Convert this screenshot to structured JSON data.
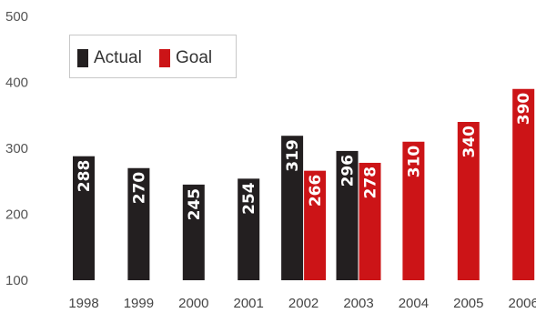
{
  "chart_data": {
    "type": "bar",
    "categories": [
      "1998",
      "1999",
      "2000",
      "2001",
      "2002",
      "2003",
      "2004",
      "2005",
      "2006"
    ],
    "series": [
      {
        "name": "Actual",
        "color": "#231f20",
        "values": [
          288,
          270,
          245,
          254,
          319,
          296,
          null,
          null,
          null
        ]
      },
      {
        "name": "Goal",
        "color": "#cc1417",
        "values": [
          null,
          null,
          null,
          null,
          266,
          278,
          310,
          340,
          390
        ]
      }
    ],
    "yticks": [
      "100",
      "200",
      "300",
      "400",
      "500"
    ],
    "ylim": [
      100,
      500
    ],
    "grid": false,
    "legend_position": "top-left"
  }
}
